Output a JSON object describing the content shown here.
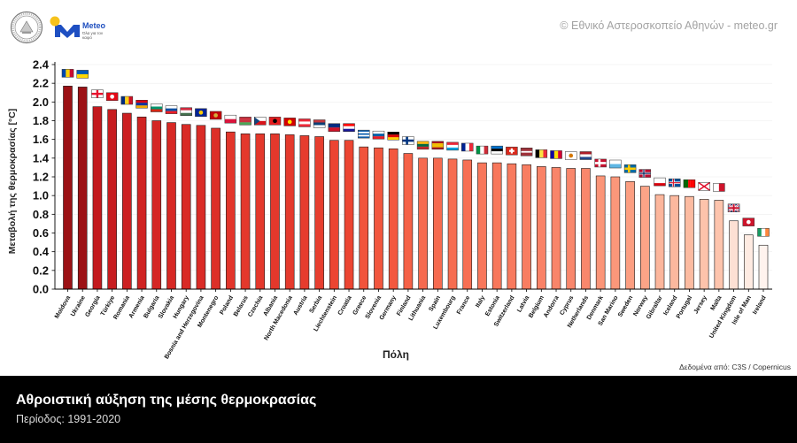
{
  "header": {
    "copyright": "© Εθνικό Αστεροσκοπείο Αθηνών - meteo.gr"
  },
  "logo": {
    "name": "Meteo",
    "tagline": "Όλα για τον καιρό"
  },
  "chart_data": {
    "type": "bar",
    "title": "Αθροιστική αύξηση της μέσης θερμοκρασίας",
    "subtitle": "Περίοδος: 1991-2020",
    "xlabel": "Πόλη",
    "ylabel": "Μεταβολή της θερμοκρασίας [°C]",
    "source": "Δεδομένα από: C3S / Copernicus",
    "ylim": [
      0,
      2.4
    ],
    "yticks": [
      "0.0",
      "0.2",
      "0.4",
      "0.6",
      "0.8",
      "1.0",
      "1.2",
      "1.4",
      "1.6",
      "1.8",
      "2.0",
      "2.2",
      "2.4"
    ],
    "grid": true,
    "bar_edge_color": "#1a1a1a",
    "categories": [
      "Moldova",
      "Ukraine",
      "Georgia",
      "Türkiye",
      "Romania",
      "Armenia",
      "Bulgaria",
      "Slovakia",
      "Hungary",
      "Bosnia and Herzegovina",
      "Montenegro",
      "Poland",
      "Belarus",
      "Czechia",
      "Albania",
      "North Macedonia",
      "Austria",
      "Serbia",
      "Liechtenstein",
      "Croatia",
      "Greece",
      "Slovenia",
      "Germany",
      "Finland",
      "Lithuania",
      "Spain",
      "Luxembourg",
      "France",
      "Italy",
      "Estonia",
      "Switzerland",
      "Latvia",
      "Belgium",
      "Andorra",
      "Cyprus",
      "Netherlands",
      "Denmark",
      "San Marino",
      "Sweden",
      "Norway",
      "Gibraltar",
      "Iceland",
      "Portugal",
      "Jersey",
      "Malta",
      "United Kingdom",
      "Isle of Man",
      "Ireland"
    ],
    "values": [
      2.17,
      2.16,
      1.95,
      1.92,
      1.88,
      1.84,
      1.8,
      1.78,
      1.76,
      1.75,
      1.72,
      1.68,
      1.66,
      1.66,
      1.66,
      1.65,
      1.64,
      1.63,
      1.59,
      1.59,
      1.52,
      1.51,
      1.5,
      1.45,
      1.4,
      1.4,
      1.39,
      1.38,
      1.35,
      1.35,
      1.34,
      1.33,
      1.31,
      1.3,
      1.29,
      1.29,
      1.21,
      1.2,
      1.15,
      1.1,
      1.01,
      1.0,
      0.99,
      0.96,
      0.95,
      0.73,
      0.58,
      0.47
    ],
    "colormap": [
      {
        "v": 0.47,
        "c": "#fff3ee"
      },
      {
        "v": 0.58,
        "c": "#feebe2"
      },
      {
        "v": 0.73,
        "c": "#fde0d4"
      },
      {
        "v": 0.96,
        "c": "#fdc3ab"
      },
      {
        "v": 1.0,
        "c": "#fcb89e"
      },
      {
        "v": 1.1,
        "c": "#fca487"
      },
      {
        "v": 1.2,
        "c": "#fb977a"
      },
      {
        "v": 1.3,
        "c": "#f9856a"
      },
      {
        "v": 1.35,
        "c": "#f8775b"
      },
      {
        "v": 1.4,
        "c": "#f66a4f"
      },
      {
        "v": 1.5,
        "c": "#f3583f"
      },
      {
        "v": 1.59,
        "c": "#ec4532"
      },
      {
        "v": 1.66,
        "c": "#e4382c"
      },
      {
        "v": 1.76,
        "c": "#d92a25"
      },
      {
        "v": 1.88,
        "c": "#cc1f21"
      },
      {
        "v": 1.95,
        "c": "#c3191d"
      },
      {
        "v": 2.16,
        "c": "#9c1115"
      }
    ],
    "flags": [
      {
        "icon": "vertical-stripes-flag",
        "colors": [
          "#0046ae",
          "#ffd200",
          "#cc092f"
        ]
      },
      {
        "icon": "horizontal-stripes-flag",
        "colors": [
          "#0057b7",
          "#ffd700"
        ]
      },
      {
        "icon": "centered-cross-flag",
        "bg": "#ffffff",
        "fg": "#e8112d"
      },
      {
        "icon": "emblem-flag",
        "bg": "#e30a17",
        "mark": "#ffffff"
      },
      {
        "icon": "vertical-stripes-flag",
        "colors": [
          "#002b7f",
          "#fcd116",
          "#ce1126"
        ]
      },
      {
        "icon": "horizontal-stripes-flag",
        "colors": [
          "#d90012",
          "#0033a0",
          "#f2a800"
        ]
      },
      {
        "icon": "horizontal-stripes-flag",
        "colors": [
          "#ffffff",
          "#00966e",
          "#d62612"
        ]
      },
      {
        "icon": "horizontal-stripes-flag",
        "colors": [
          "#ffffff",
          "#0b4ea2",
          "#ee1c25"
        ]
      },
      {
        "icon": "horizontal-stripes-flag",
        "colors": [
          "#cd2a3e",
          "#ffffff",
          "#436f4d"
        ]
      },
      {
        "icon": "emblem-flag",
        "bg": "#002395",
        "mark": "#fecb00"
      },
      {
        "icon": "emblem-flag",
        "bg": "#c40308",
        "mark": "#d3ae3b"
      },
      {
        "icon": "horizontal-stripes-flag",
        "colors": [
          "#ffffff",
          "#dc143c"
        ]
      },
      {
        "icon": "horizontal-stripes-flag",
        "colors": [
          "#c8313e",
          "#c8313e",
          "#4aa657"
        ]
      },
      {
        "icon": "hoist-triangle-flag",
        "colors": [
          "#ffffff",
          "#d7141a"
        ],
        "tri": "#11457e"
      },
      {
        "icon": "emblem-flag",
        "bg": "#e41e20",
        "mark": "#000000"
      },
      {
        "icon": "emblem-flag",
        "bg": "#d20000",
        "mark": "#ffe600"
      },
      {
        "icon": "horizontal-stripes-flag",
        "colors": [
          "#ed2939",
          "#ffffff",
          "#ed2939"
        ]
      },
      {
        "icon": "horizontal-stripes-flag",
        "colors": [
          "#c6363c",
          "#0c4076",
          "#ffffff"
        ]
      },
      {
        "icon": "horizontal-stripes-flag",
        "colors": [
          "#002b7f",
          "#ce1126"
        ]
      },
      {
        "icon": "horizontal-stripes-flag",
        "colors": [
          "#ff0000",
          "#ffffff",
          "#171796"
        ]
      },
      {
        "icon": "horizontal-stripes-flag",
        "colors": [
          "#0d5eaf",
          "#ffffff",
          "#0d5eaf",
          "#ffffff",
          "#0d5eaf"
        ]
      },
      {
        "icon": "horizontal-stripes-flag",
        "colors": [
          "#ffffff",
          "#005da4",
          "#ed1c24"
        ]
      },
      {
        "icon": "horizontal-stripes-flag",
        "colors": [
          "#000000",
          "#dd0000",
          "#ffce00"
        ]
      },
      {
        "icon": "nordic-cross-flag",
        "bg": "#ffffff",
        "fg": "#003580"
      },
      {
        "icon": "horizontal-stripes-flag",
        "colors": [
          "#fdb913",
          "#006a44",
          "#c1272d"
        ]
      },
      {
        "icon": "horizontal-stripes-flag",
        "colors": [
          "#aa151b",
          "#f1bf00",
          "#f1bf00",
          "#aa151b"
        ]
      },
      {
        "icon": "horizontal-stripes-flag",
        "colors": [
          "#ed2939",
          "#ffffff",
          "#00a1de"
        ]
      },
      {
        "icon": "vertical-stripes-flag",
        "colors": [
          "#002395",
          "#ffffff",
          "#ed2939"
        ]
      },
      {
        "icon": "vertical-stripes-flag",
        "colors": [
          "#009246",
          "#ffffff",
          "#ce2b37"
        ]
      },
      {
        "icon": "horizontal-stripes-flag",
        "colors": [
          "#0072ce",
          "#000000",
          "#ffffff"
        ]
      },
      {
        "icon": "centered-cross-flag",
        "bg": "#da291c",
        "fg": "#ffffff",
        "small": true
      },
      {
        "icon": "horizontal-stripes-flag",
        "colors": [
          "#9e3039",
          "#9e3039",
          "#ffffff",
          "#9e3039",
          "#9e3039"
        ]
      },
      {
        "icon": "vertical-stripes-flag",
        "colors": [
          "#000000",
          "#fae042",
          "#ed2939"
        ]
      },
      {
        "icon": "vertical-stripes-flag",
        "colors": [
          "#10069f",
          "#fedf00",
          "#d50032"
        ]
      },
      {
        "icon": "emblem-flag",
        "bg": "#ffffff",
        "mark": "#d57800"
      },
      {
        "icon": "horizontal-stripes-flag",
        "colors": [
          "#ae1c28",
          "#ffffff",
          "#21468b"
        ]
      },
      {
        "icon": "nordic-cross-flag",
        "bg": "#c8102e",
        "fg": "#ffffff"
      },
      {
        "icon": "horizontal-stripes-flag",
        "colors": [
          "#ffffff",
          "#5eb6e4"
        ]
      },
      {
        "icon": "nordic-cross-flag",
        "bg": "#006aa7",
        "fg": "#fecc00"
      },
      {
        "icon": "nordic-cross-flag",
        "bg": "#ba0c2f",
        "fg": "#ffffff",
        "inner": "#00205b"
      },
      {
        "icon": "horizontal-stripes-flag",
        "colors": [
          "#ffffff",
          "#ffffff",
          "#da000c"
        ]
      },
      {
        "icon": "nordic-cross-flag",
        "bg": "#02529c",
        "fg": "#ffffff",
        "inner": "#dc1e35"
      },
      {
        "icon": "vertical-stripes-flag",
        "colors": [
          "#006600",
          "#006600",
          "#ff0000",
          "#ff0000",
          "#ff0000"
        ]
      },
      {
        "icon": "saltire-flag",
        "bg": "#ffffff",
        "fg": "#df112d"
      },
      {
        "icon": "vertical-stripes-flag",
        "colors": [
          "#ffffff",
          "#cf142b"
        ]
      },
      {
        "icon": "union-flag",
        "bg": "#012169",
        "fg": "#c8102e"
      },
      {
        "icon": "emblem-flag",
        "bg": "#cf142b",
        "mark": "#ffffff"
      },
      {
        "icon": "vertical-stripes-flag",
        "colors": [
          "#169b62",
          "#ffffff",
          "#ff883e"
        ]
      }
    ]
  }
}
